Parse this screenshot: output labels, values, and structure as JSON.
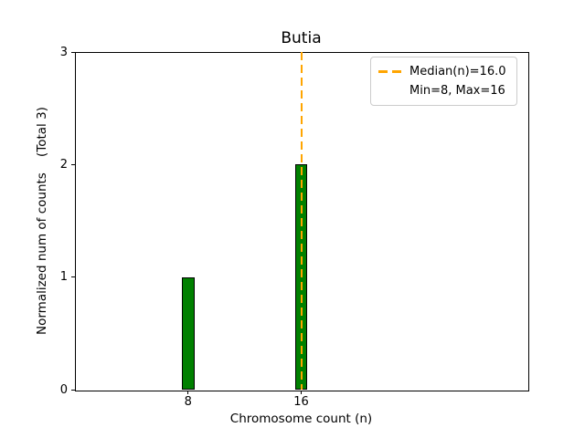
{
  "chart_data": {
    "type": "bar",
    "title": "Butia",
    "xlabel": "Chromosome count (n)",
    "ylabel": "Normalized num of counts    (Total 3)",
    "categories": [
      8,
      16
    ],
    "values": [
      1,
      2
    ],
    "total_counts": 3,
    "median": 16.0,
    "min": 8,
    "max": 16,
    "xlim": [
      0,
      32
    ],
    "ylim": [
      0,
      3
    ],
    "yticks": [
      0,
      1,
      2,
      3
    ],
    "xticks": [
      8,
      16
    ],
    "bar_width_units": 0.9,
    "grid": false,
    "legend_position": "upper right",
    "legend_labels": [
      "Median(n)=16.0",
      "Min=8, Max=16"
    ],
    "colors": {
      "bar_fill": "#008000",
      "bar_edge": "#000000",
      "median_line": "#ffa500",
      "axis": "#000000",
      "legend_border": "#cccccc",
      "background": "#ffffff"
    }
  }
}
